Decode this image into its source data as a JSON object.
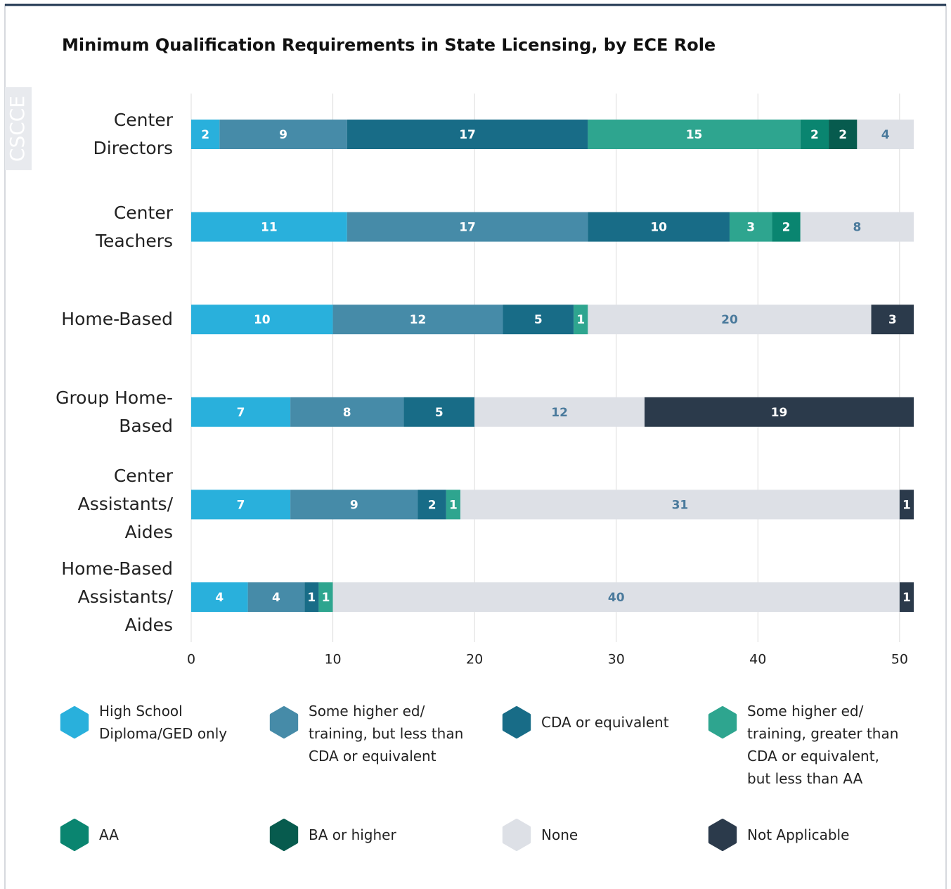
{
  "chart_data": {
    "type": "stacked-bar-horizontal",
    "title": "Minimum Qualification Requirements in State Licensing, by ECE Role",
    "watermark": "CSCCE",
    "categories": [
      "Center Directors",
      "Center Teachers",
      "Home-Based",
      "Group Home-Based",
      "Center Assistants/ Aides",
      "Home-Based Assistants/ Aides"
    ],
    "series": [
      {
        "name": "High School Diploma/GED only",
        "color": "#29b0dc",
        "values": [
          2,
          11,
          10,
          7,
          7,
          4
        ]
      },
      {
        "name": "Some higher ed/ training, but less than CDA or equivalent",
        "color": "#468ba8",
        "values": [
          9,
          17,
          12,
          8,
          9,
          4
        ]
      },
      {
        "name": "CDA or equivalent",
        "color": "#186c87",
        "values": [
          17,
          10,
          5,
          5,
          2,
          1
        ]
      },
      {
        "name": "Some higher ed/ training, greater than CDA or equivalent, but less than AA",
        "color": "#2ea58f",
        "values": [
          15,
          3,
          1,
          null,
          1,
          1
        ]
      },
      {
        "name": "AA",
        "color": "#0a8570",
        "values": [
          2,
          2,
          null,
          null,
          null,
          null
        ]
      },
      {
        "name": "BA or higher",
        "color": "#075b4e",
        "values": [
          2,
          null,
          null,
          null,
          null,
          null
        ]
      },
      {
        "name": "None",
        "color": "#dde0e6",
        "values": [
          4,
          8,
          20,
          12,
          31,
          40
        ]
      },
      {
        "name": "Not Applicable",
        "color": "#2b3a4b",
        "values": [
          null,
          null,
          3,
          19,
          1,
          1
        ]
      }
    ],
    "xlim": [
      0,
      51
    ],
    "xticks": [
      0,
      10,
      20,
      30,
      40,
      50
    ],
    "grid": true
  }
}
